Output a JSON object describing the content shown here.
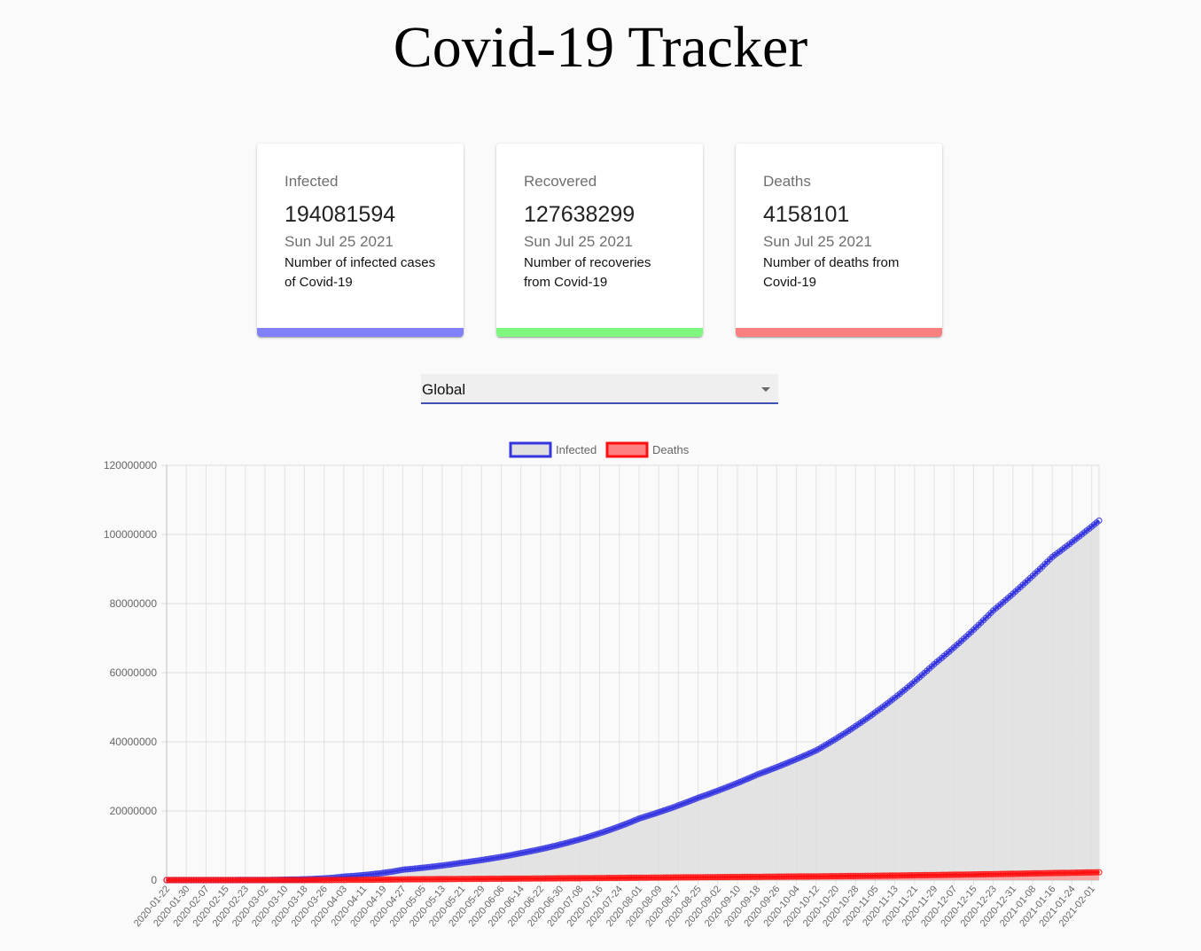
{
  "page": {
    "title": "Covid-19 Tracker"
  },
  "cards": [
    {
      "label": "Infected",
      "value": "194081594",
      "date": "Sun Jul 25 2021",
      "description": "Number of infected cases of Covid-19",
      "color": "#8080f8"
    },
    {
      "label": "Recovered",
      "value": "127638299",
      "date": "Sun Jul 25 2021",
      "description": "Number of recoveries from Covid-19",
      "color": "#80f880"
    },
    {
      "label": "Deaths",
      "value": "4158101",
      "date": "Sun Jul 25 2021",
      "description": "Number of deaths from Covid-19",
      "color": "#f88080"
    }
  ],
  "country_select": {
    "selected": "Global"
  },
  "chart_data": {
    "type": "line",
    "grid": true,
    "legend_position": "top-center",
    "ylim": [
      0,
      120000000
    ],
    "y_ticks": [
      "0",
      "20000000",
      "40000000",
      "60000000",
      "80000000",
      "100000000",
      "120000000"
    ],
    "x_tick_labels": [
      "2020-01-22",
      "2020-01-30",
      "2020-02-07",
      "2020-02-15",
      "2020-02-23",
      "2020-03-02",
      "2020-03-10",
      "2020-03-18",
      "2020-03-26",
      "2020-04-03",
      "2020-04-11",
      "2020-04-19",
      "2020-04-27",
      "2020-05-05",
      "2020-05-13",
      "2020-05-21",
      "2020-05-29",
      "2020-06-06",
      "2020-06-14",
      "2020-06-22",
      "2020-06-30",
      "2020-07-08",
      "2020-07-16",
      "2020-07-24",
      "2020-08-01",
      "2020-08-09",
      "2020-08-17",
      "2020-08-25",
      "2020-09-02",
      "2020-09-10",
      "2020-09-18",
      "2020-09-26",
      "2020-10-04",
      "2020-10-12",
      "2020-10-20",
      "2020-10-28",
      "2020-11-05",
      "2020-11-13",
      "2020-11-21",
      "2020-11-29",
      "2020-12-07",
      "2020-12-15",
      "2020-12-23",
      "2020-12-31",
      "2021-01-08",
      "2021-01-16",
      "2021-01-24",
      "2021-02-01"
    ],
    "x": [
      "2020-01-22",
      "2020-03-10",
      "2020-04-03",
      "2020-04-27",
      "2020-05-21",
      "2020-06-14",
      "2020-07-08",
      "2020-08-01",
      "2020-08-25",
      "2020-09-18",
      "2020-10-12",
      "2020-11-05",
      "2020-11-29",
      "2020-12-23",
      "2021-01-16",
      "2021-02-04"
    ],
    "series": [
      {
        "name": "Infected",
        "color": "#3535e0",
        "fill": "#e0e0e0",
        "values": [
          500,
          120000,
          1000000,
          3000000,
          5000000,
          7800000,
          11800000,
          17800000,
          23800000,
          30500000,
          37500000,
          48500000,
          62500000,
          78000000,
          93500000,
          104000000
        ]
      },
      {
        "name": "Deaths",
        "color": "#ff1010",
        "fill": "#ff8080",
        "values": [
          17,
          4500,
          60000,
          210000,
          330000,
          430000,
          550000,
          680000,
          820000,
          950000,
          1080000,
          1250000,
          1470000,
          1730000,
          2030000,
          2260000
        ]
      }
    ]
  }
}
